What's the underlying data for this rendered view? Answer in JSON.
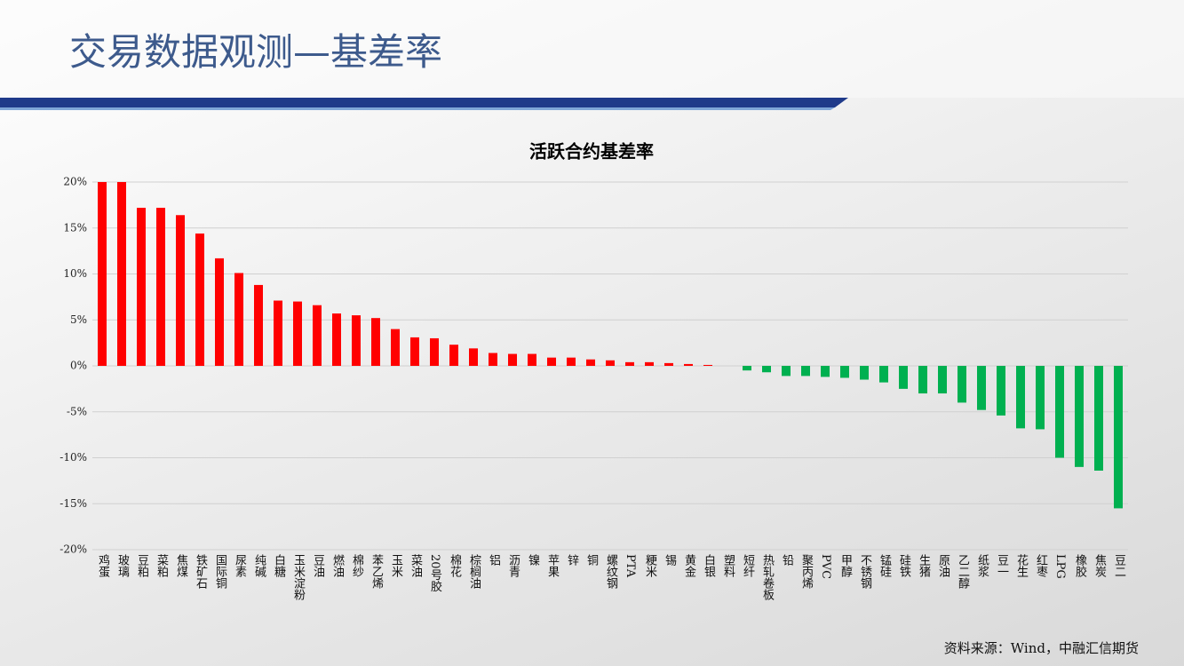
{
  "header": {
    "title": "交易数据观测—基差率"
  },
  "footer": {
    "source": "资料来源：Wind，中融汇信期货"
  },
  "chart_data": {
    "type": "bar",
    "title": "活跃合约基差率",
    "categories": [
      "鸡蛋",
      "玻璃",
      "豆粕",
      "菜粕",
      "焦煤",
      "铁矿石",
      "国际铜",
      "尿素",
      "纯碱",
      "白糖",
      "玉米淀粉",
      "豆油",
      "燃油",
      "棉纱",
      "苯乙烯",
      "玉米",
      "菜油",
      "20号胶",
      "棉花",
      "棕榈油",
      "铝",
      "沥青",
      "镍",
      "苹果",
      "锌",
      "铜",
      "螺纹钢",
      "PTA",
      "粳米",
      "锡",
      "黄金",
      "白银",
      "塑料",
      "短纤",
      "热轧卷板",
      "铅",
      "聚丙烯",
      "PVC",
      "甲醇",
      "不锈钢",
      "锰硅",
      "硅铁",
      "生猪",
      "原油",
      "乙二醇",
      "纸浆",
      "豆一",
      "花生",
      "红枣",
      "LPG",
      "橡胶",
      "焦炭",
      "豆二"
    ],
    "values": [
      20,
      20,
      17.2,
      17.2,
      16.4,
      14.4,
      11.7,
      10.1,
      8.8,
      7.1,
      7.0,
      6.6,
      5.7,
      5.5,
      5.2,
      4.0,
      3.1,
      3.0,
      2.3,
      1.9,
      1.4,
      1.3,
      1.3,
      0.9,
      0.9,
      0.7,
      0.6,
      0.4,
      0.4,
      0.3,
      0.2,
      0.1,
      0,
      -0.5,
      -0.7,
      -1.1,
      -1.1,
      -1.2,
      -1.3,
      -1.5,
      -1.8,
      -2.5,
      -3.0,
      -3.0,
      -4.0,
      -4.8,
      -5.4,
      -6.8,
      -6.9,
      -10.0,
      -11.0,
      -11.4,
      -15.5
    ],
    "positive_color": "#ff0000",
    "negative_color": "#00b050",
    "ylim": [
      -20,
      20
    ],
    "yticks": [
      {
        "value": 20,
        "label": "20%"
      },
      {
        "value": 15,
        "label": "15%"
      },
      {
        "value": 10,
        "label": "10%"
      },
      {
        "value": 5,
        "label": "5%"
      },
      {
        "value": 0,
        "label": "0%"
      },
      {
        "value": -5,
        "label": "-5%"
      },
      {
        "value": -10,
        "label": "-10%"
      },
      {
        "value": -15,
        "label": "-15%"
      },
      {
        "value": -20,
        "label": "-20%"
      }
    ],
    "grid": true
  }
}
